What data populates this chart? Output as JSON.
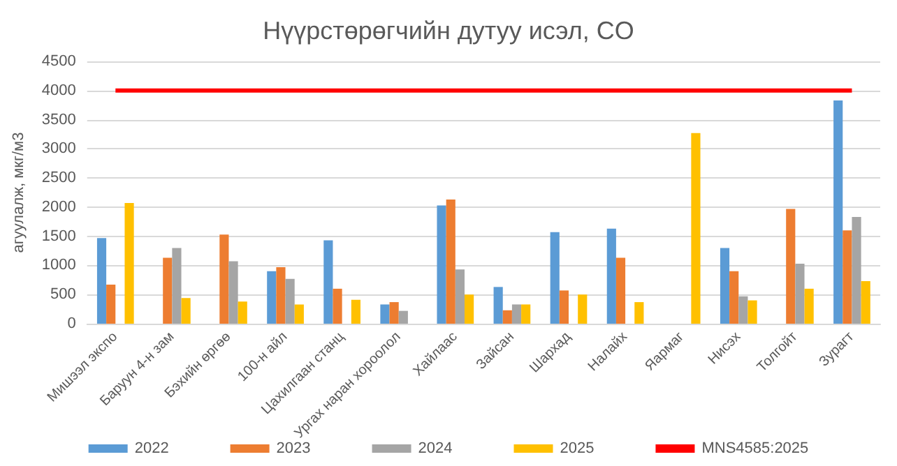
{
  "chart_data": {
    "type": "bar",
    "title": "Нүүрстөрөгчийн дутуу исэл, CO",
    "ylabel": "агуулалж, мкг/м3",
    "categories": [
      "Мишээл экспо",
      "Баруун 4-н зам",
      "Бэхийн өргөө",
      "100-н айл",
      "Цахилгаан станц",
      "Ургах наран хороолол",
      "Хайлаас",
      "Зайсан",
      "Шархад",
      "Налайх",
      "Яармаг",
      "Нисэх",
      "Толгойт",
      "Зурагт"
    ],
    "series": [
      {
        "name": "2022",
        "color": "#5b9bd5",
        "values": [
          1470,
          null,
          null,
          900,
          1430,
          330,
          2030,
          630,
          1570,
          1630,
          null,
          1300,
          null,
          3830
        ]
      },
      {
        "name": "2023",
        "color": "#ed7d31",
        "values": [
          670,
          1130,
          1530,
          970,
          600,
          370,
          2130,
          230,
          570,
          1130,
          null,
          900,
          1970,
          1600
        ]
      },
      {
        "name": "2024",
        "color": "#a5a5a5",
        "values": [
          null,
          1300,
          1070,
          770,
          null,
          220,
          930,
          330,
          null,
          null,
          null,
          470,
          1030,
          1830
        ]
      },
      {
        "name": "2025",
        "color": "#ffc000",
        "values": [
          2070,
          440,
          380,
          330,
          410,
          null,
          500,
          330,
          500,
          370,
          3270,
          400,
          600,
          730
        ]
      },
      {
        "name": "MNS4585:2025",
        "type": "line",
        "color": "#ff0000",
        "values": [
          4000,
          4000,
          4000,
          4000,
          4000,
          4000,
          4000,
          4000,
          4000,
          4000,
          4000,
          4000,
          4000,
          4000
        ]
      }
    ],
    "ylim": [
      0,
      4500
    ],
    "yticks": [
      0,
      500,
      1000,
      1500,
      2000,
      2500,
      3000,
      3500,
      4000,
      4500
    ],
    "grid": "y",
    "legend": "bottom",
    "marker": "none"
  }
}
